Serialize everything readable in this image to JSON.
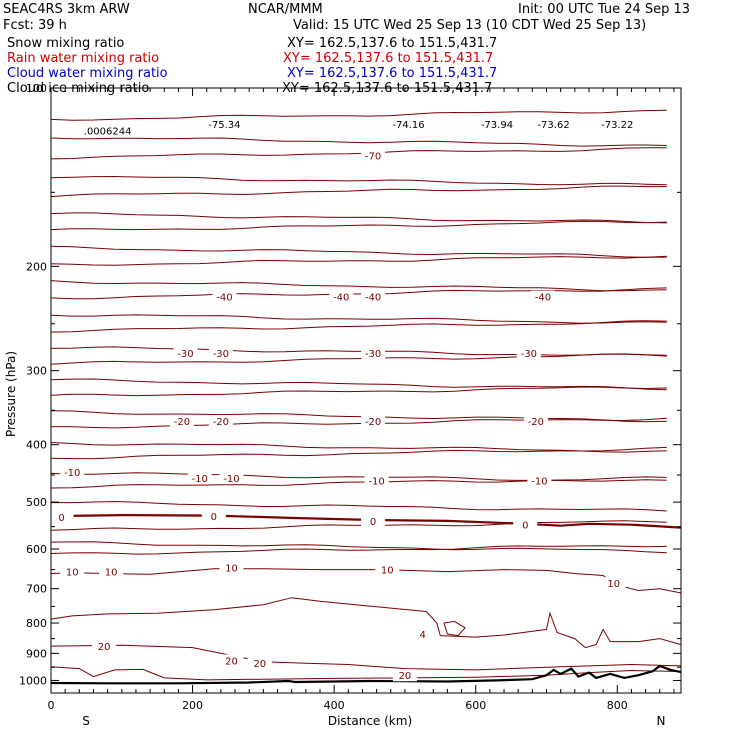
{
  "header": {
    "model": "SEAC4RS  3km ARW",
    "org": "NCAR/MMM",
    "init": "Init: 00 UTC Tue 24 Sep 13",
    "fcst": "Fcst:   39 h",
    "valid": "Valid: 15 UTC Wed 25 Sep 13 (10 CDT Wed 25 Sep 13)"
  },
  "fields": [
    {
      "label": "Snow mixing ratio",
      "xy": "XY= 162.5,137.6 to 151.5,431.7",
      "color": "#000000"
    },
    {
      "label": "Rain water mixing ratio",
      "xy": "XY= 162.5,137.6 to 151.5,431.7",
      "color": "#cc0000"
    },
    {
      "label": "Cloud water mixing ratio",
      "xy": "XY= 162.5,137.6 to 151.5,431.7",
      "color": "#0000cc"
    },
    {
      "label": "Cloud ice mixing ratio",
      "xy": "XY= 162.5,137.6 to 151.5,431.7",
      "color": "#000000"
    }
  ],
  "chart_data": {
    "type": "line",
    "xlabel": "Distance (km)",
    "ylabel": "Pressure (hPa)",
    "xlim": [
      0,
      890
    ],
    "ylim": [
      1050,
      100
    ],
    "x_ticks": [
      "0",
      "200",
      "400",
      "600",
      "800"
    ],
    "y_ticks": [
      "100",
      "200",
      "300",
      "400",
      "500",
      "600",
      "700",
      "800",
      "900",
      "1000"
    ],
    "y_scale": "log",
    "end_labels": {
      "left": "S",
      "right": "N"
    },
    "contour_color": "#7a0000",
    "top_labels": [
      {
        "text": ".0006244",
        "x": 80,
        "p": 118
      },
      {
        "text": "-75.34",
        "x": 245,
        "p": 115
      },
      {
        "text": "-74.16",
        "x": 505,
        "p": 115
      },
      {
        "text": "-73.94",
        "x": 630,
        "p": 115
      },
      {
        "text": "-73.62",
        "x": 710,
        "p": 115
      },
      {
        "text": "-73.22",
        "x": 800,
        "p": 115
      }
    ],
    "isotherm_labels": [
      {
        "text": "-70",
        "x": 455,
        "p": 130
      },
      {
        "text": "-40",
        "x": 245,
        "p": 225
      },
      {
        "text": "-40",
        "x": 410,
        "p": 225
      },
      {
        "text": "-40",
        "x": 455,
        "p": 225
      },
      {
        "text": "-40",
        "x": 695,
        "p": 225
      },
      {
        "text": "-30",
        "x": 190,
        "p": 280
      },
      {
        "text": "-30",
        "x": 240,
        "p": 280
      },
      {
        "text": "-30",
        "x": 455,
        "p": 280
      },
      {
        "text": "-30",
        "x": 675,
        "p": 280
      },
      {
        "text": "-20",
        "x": 185,
        "p": 365
      },
      {
        "text": "-20",
        "x": 240,
        "p": 365
      },
      {
        "text": "-20",
        "x": 455,
        "p": 365
      },
      {
        "text": "-20",
        "x": 685,
        "p": 365
      },
      {
        "text": "-10",
        "x": 30,
        "p": 445
      },
      {
        "text": "-10",
        "x": 210,
        "p": 455
      },
      {
        "text": "-10",
        "x": 255,
        "p": 455
      },
      {
        "text": "-10",
        "x": 460,
        "p": 460
      },
      {
        "text": "-10",
        "x": 690,
        "p": 460
      },
      {
        "text": "0",
        "x": 15,
        "p": 530
      },
      {
        "text": "0",
        "x": 230,
        "p": 528
      },
      {
        "text": "0",
        "x": 455,
        "p": 538
      },
      {
        "text": "0",
        "x": 670,
        "p": 545
      },
      {
        "text": "10",
        "x": 30,
        "p": 655
      },
      {
        "text": "10",
        "x": 85,
        "p": 655
      },
      {
        "text": "10",
        "x": 255,
        "p": 645
      },
      {
        "text": "10",
        "x": 475,
        "p": 650
      },
      {
        "text": "10",
        "x": 795,
        "p": 685
      },
      {
        "text": "4",
        "x": 525,
        "p": 835
      },
      {
        "text": "20",
        "x": 75,
        "p": 875
      },
      {
        "text": "20",
        "x": 255,
        "p": 925
      },
      {
        "text": "20",
        "x": 295,
        "p": 935
      },
      {
        "text": "20",
        "x": 500,
        "p": 980
      }
    ]
  }
}
